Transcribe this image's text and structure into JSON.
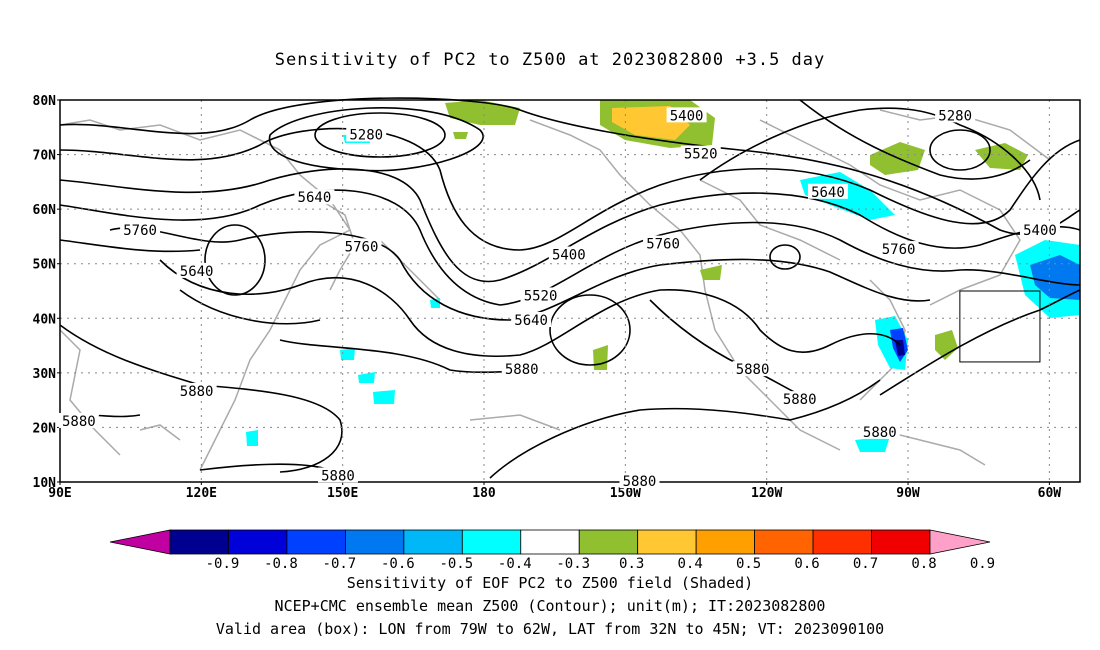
{
  "title": "Sensitivity of PC2 to Z500 at 2023082800 +3.5 day",
  "map": {
    "lat_ticks": [
      {
        "value": 80,
        "label": "80N"
      },
      {
        "value": 70,
        "label": "70N"
      },
      {
        "value": 60,
        "label": "60N"
      },
      {
        "value": 50,
        "label": "50N"
      },
      {
        "value": 40,
        "label": "40N"
      },
      {
        "value": 30,
        "label": "30N"
      },
      {
        "value": 20,
        "label": "20N"
      },
      {
        "value": 10,
        "label": "10N"
      }
    ],
    "lon_ticks": [
      {
        "value": 90,
        "label": "90E"
      },
      {
        "value": 120,
        "label": "120E"
      },
      {
        "value": 150,
        "label": "150E"
      },
      {
        "value": 180,
        "label": "180"
      },
      {
        "value": 210,
        "label": "150W"
      },
      {
        "value": 240,
        "label": "120W"
      },
      {
        "value": 270,
        "label": "90W"
      },
      {
        "value": 300,
        "label": "60W"
      }
    ],
    "contour_labels": [
      {
        "text": "5280",
        "lon": 155,
        "lat": 73.5
      },
      {
        "text": "5280",
        "lon": 280,
        "lat": 77
      },
      {
        "text": "5400",
        "lon": 223,
        "lat": 77
      },
      {
        "text": "5400",
        "lon": 298,
        "lat": 56
      },
      {
        "text": "5400",
        "lon": 198,
        "lat": 51.5
      },
      {
        "text": "5520",
        "lon": 226,
        "lat": 70
      },
      {
        "text": "5520",
        "lon": 192,
        "lat": 44
      },
      {
        "text": "5640",
        "lon": 144,
        "lat": 62
      },
      {
        "text": "5640",
        "lon": 119,
        "lat": 48.5
      },
      {
        "text": "5640",
        "lon": 253,
        "lat": 63
      },
      {
        "text": "5640",
        "lon": 190,
        "lat": 39.5
      },
      {
        "text": "5760",
        "lon": 107,
        "lat": 56
      },
      {
        "text": "5760",
        "lon": 154,
        "lat": 53
      },
      {
        "text": "5760",
        "lon": 218,
        "lat": 53.5
      },
      {
        "text": "5760",
        "lon": 268,
        "lat": 52.5
      },
      {
        "text": "5880",
        "lon": 188,
        "lat": 30.5
      },
      {
        "text": "5880",
        "lon": 119,
        "lat": 26.5
      },
      {
        "text": "5880",
        "lon": 94,
        "lat": 21
      },
      {
        "text": "5880",
        "lon": 149,
        "lat": 11
      },
      {
        "text": "5880",
        "lon": 237,
        "lat": 30.5
      },
      {
        "text": "5880",
        "lon": 247,
        "lat": 25
      },
      {
        "text": "5880",
        "lon": 264,
        "lat": 19
      },
      {
        "text": "5880",
        "lon": 213,
        "lat": 10
      }
    ],
    "valid_box": {
      "lon_min": 281,
      "lon_max": 298,
      "lat_min": 32,
      "lat_max": 45
    }
  },
  "colorbar": {
    "colors": [
      "#c000a0",
      "#000090",
      "#0000d8",
      "#0040ff",
      "#0078f0",
      "#00b8f8",
      "#00ffff",
      "#ffffff",
      "#90c030",
      "#ffc832",
      "#ffa000",
      "#ff6400",
      "#ff3000",
      "#f00000",
      "#ffa0c8"
    ],
    "labels": [
      "-0.9",
      "-0.8",
      "-0.7",
      "-0.6",
      "-0.5",
      "-0.4",
      "-0.3",
      "0.3",
      "0.4",
      "0.5",
      "0.6",
      "0.7",
      "0.8",
      "0.9"
    ]
  },
  "captions": [
    "Sensitivity of EOF PC2 to Z500 field (Shaded)",
    "NCEP+CMC ensemble mean Z500 (Contour); unit(m); IT:2023082800",
    "Valid area (box): LON from 79W to 62W, LAT from 32N to 45N; VT: 2023090100"
  ]
}
